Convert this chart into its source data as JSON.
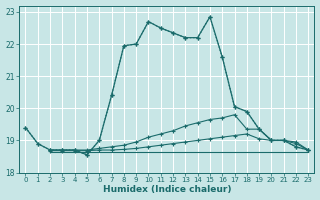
{
  "xlabel": "Humidex (Indice chaleur)",
  "ylabel": "",
  "xlim": [
    -0.5,
    23.5
  ],
  "ylim": [
    18,
    23.2
  ],
  "yticks": [
    18,
    19,
    20,
    21,
    22,
    23
  ],
  "xticks": [
    0,
    1,
    2,
    3,
    4,
    5,
    6,
    7,
    8,
    9,
    10,
    11,
    12,
    13,
    14,
    15,
    16,
    17,
    18,
    19,
    20,
    21,
    22,
    23
  ],
  "bg_color": "#c8e6e6",
  "grid_color": "#e8f4f4",
  "line_color": "#1a6b6b",
  "series_main_dot": {
    "x": [
      0,
      1,
      2,
      3,
      4,
      5,
      6,
      7,
      8,
      9,
      10,
      11,
      12,
      13,
      14,
      15,
      16,
      17,
      18,
      19,
      20,
      21,
      22,
      23
    ],
    "y": [
      19.4,
      18.9,
      18.7,
      18.7,
      18.7,
      18.55,
      19.0,
      20.4,
      21.95,
      22.0,
      22.7,
      22.5,
      22.35,
      22.2,
      22.2,
      22.85,
      21.6,
      20.05,
      19.9,
      19.35,
      19.0,
      19.0,
      18.8,
      18.7
    ]
  },
  "series_main_solid": {
    "x": [
      0,
      1,
      2,
      3,
      4,
      5,
      6,
      7,
      8,
      9,
      10,
      11,
      12,
      13,
      14,
      15,
      16,
      17,
      18,
      19,
      20,
      21,
      22,
      23
    ],
    "y": [
      19.4,
      18.9,
      18.7,
      18.7,
      18.7,
      18.55,
      19.0,
      20.4,
      21.95,
      22.0,
      22.7,
      22.5,
      22.35,
      22.2,
      22.2,
      22.85,
      21.6,
      20.05,
      19.9,
      19.35,
      19.0,
      19.0,
      18.8,
      18.7
    ]
  },
  "series_flat1": {
    "x": [
      2,
      3,
      4,
      5,
      6,
      7,
      8,
      9,
      10,
      11,
      12,
      13,
      14,
      15,
      16,
      17,
      18,
      19,
      20,
      21,
      22,
      23
    ],
    "y": [
      18.65,
      18.65,
      18.65,
      18.65,
      18.65,
      18.65,
      18.65,
      18.65,
      18.65,
      18.65,
      18.65,
      18.65,
      18.65,
      18.65,
      18.65,
      18.65,
      18.65,
      18.65,
      18.65,
      18.65,
      18.65,
      18.65
    ]
  },
  "series_slight1": {
    "x": [
      2,
      3,
      4,
      5,
      6,
      7,
      8,
      9,
      10,
      11,
      12,
      13,
      14,
      15,
      16,
      17,
      18,
      19,
      20,
      21,
      22,
      23
    ],
    "y": [
      18.68,
      18.68,
      18.68,
      18.68,
      18.7,
      18.7,
      18.72,
      18.75,
      18.8,
      18.85,
      18.9,
      18.95,
      19.0,
      19.05,
      19.1,
      19.15,
      19.2,
      19.05,
      19.0,
      19.0,
      18.95,
      18.7
    ]
  },
  "series_slight2": {
    "x": [
      2,
      3,
      4,
      5,
      6,
      7,
      8,
      9,
      10,
      11,
      12,
      13,
      14,
      15,
      16,
      17,
      18,
      19,
      20,
      21,
      22,
      23
    ],
    "y": [
      18.7,
      18.7,
      18.7,
      18.7,
      18.75,
      18.8,
      18.85,
      18.95,
      19.1,
      19.2,
      19.3,
      19.45,
      19.55,
      19.65,
      19.7,
      19.8,
      19.35,
      19.35,
      19.0,
      19.0,
      18.9,
      18.7
    ]
  }
}
